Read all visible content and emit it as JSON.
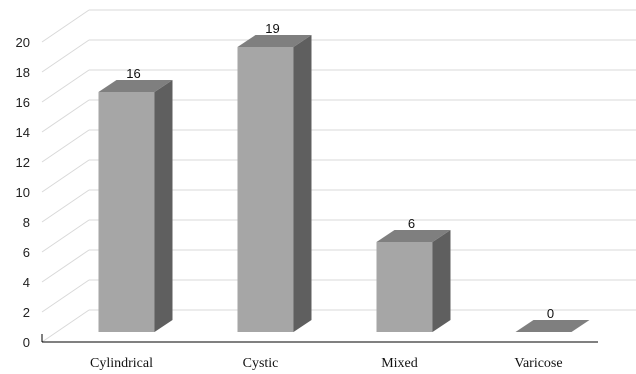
{
  "chart_data": {
    "type": "bar",
    "style": "3d-column",
    "categories": [
      "Cylindrical",
      "Cystic",
      "Mixed",
      "Varicose"
    ],
    "values": [
      16,
      19,
      6,
      0
    ],
    "data_labels": [
      "16",
      "19",
      "6",
      "0"
    ],
    "ylim": [
      0,
      20
    ],
    "yticks": [
      "0",
      "2",
      "4",
      "6",
      "8",
      "10",
      "12",
      "14",
      "16",
      "18",
      "20"
    ],
    "title": "",
    "xlabel": "",
    "ylabel": "",
    "grid": true,
    "legend": "none",
    "colors": {
      "bar_front": "#a6a6a6",
      "bar_top": "#7f7f7f",
      "bar_side": "#5f5f5f",
      "grid": "#d9d9d9",
      "axis": "#000000"
    }
  }
}
